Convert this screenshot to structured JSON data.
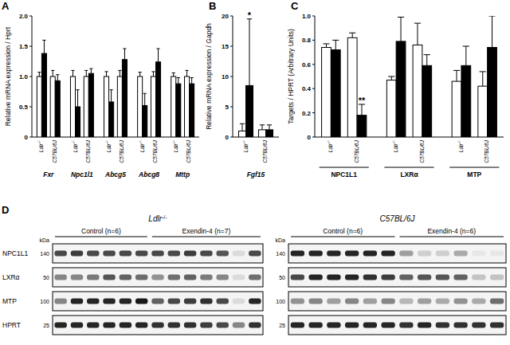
{
  "chart_data": [
    {
      "type": "bar",
      "title": "A",
      "y_label": "Relative mRNA expression / Hprt",
      "groups": [
        "Fxr",
        "Npc1l1",
        "Abcg5",
        "Abcg8",
        "Mttp"
      ],
      "categories": [
        "Ldlr-/-",
        "C57BL/6J",
        "Ldlr-/-",
        "C57BL/6J",
        "Ldlr-/-",
        "C57BL/6J",
        "Ldlr-/-",
        "C57BL/6J",
        "Ldlr-/-",
        "C57BL/6J"
      ],
      "series": [
        {
          "color": "#ffffff",
          "values": [
            1.0,
            1.0,
            1.0,
            1.0,
            1.0,
            1.0,
            1.0,
            1.0,
            1.0,
            1.0
          ],
          "errors": [
            0.07,
            0.1,
            0.1,
            0.1,
            0.08,
            0.1,
            0.07,
            0.08,
            0.06,
            0.1
          ]
        },
        {
          "color": "#000000",
          "values": [
            1.38,
            0.93,
            0.5,
            1.05,
            0.58,
            1.28,
            0.52,
            1.24,
            0.88,
            0.88
          ],
          "errors": [
            0.22,
            0.1,
            0.28,
            0.08,
            0.2,
            0.18,
            0.2,
            0.22,
            0.1,
            0.1
          ]
        }
      ],
      "ylim": [
        0,
        2
      ],
      "yticks": [
        0,
        0.5,
        {
          "value": 1,
          "label": "1.0"
        },
        1.5,
        {
          "value": 2,
          "label": "2.0"
        }
      ]
    },
    {
      "type": "bar",
      "title": "B",
      "y_label": "Relative mRNA expression / Gapdh",
      "groups": [
        "Fgf15"
      ],
      "categories": [
        "Ldlr-/-",
        "C57BL/6J"
      ],
      "series": [
        {
          "color": "#ffffff",
          "values": [
            1.0,
            1.2
          ],
          "errors": [
            1.2,
            0.8
          ]
        },
        {
          "color": "#000000",
          "values": [
            8.5,
            1.2
          ],
          "errors": [
            11,
            0.8
          ],
          "significance": [
            "*",
            null
          ]
        }
      ],
      "ylim": [
        0,
        20
      ],
      "yticks": [
        0,
        5,
        10,
        15,
        20
      ]
    },
    {
      "type": "bar",
      "title": "C",
      "y_label": "Targets / HPRT (Arbitrary Units)",
      "groups": [
        "NPC1L1",
        "LXRα",
        "MTP"
      ],
      "categories": [
        "Ldlr-/-",
        "C57BL/6J",
        "Ldlr-/-",
        "C57BL/6J",
        "Ldlr-/-",
        "C57BL/6J"
      ],
      "series": [
        {
          "color": "#ffffff",
          "values": [
            0.74,
            0.82,
            0.47,
            0.76,
            0.46,
            0.42
          ],
          "errors": [
            0.03,
            0.04,
            0.03,
            0.18,
            0.09,
            0.12
          ]
        },
        {
          "color": "#000000",
          "values": [
            0.72,
            0.18,
            0.79,
            0.59,
            0.59,
            0.74
          ],
          "errors": [
            0.08,
            0.09,
            0.2,
            0.09,
            0.16,
            0.26
          ],
          "significance": [
            null,
            "**",
            null,
            null,
            null,
            null
          ]
        }
      ],
      "ylim": [
        0,
        1
      ],
      "yticks": [
        0,
        0.2,
        0.4,
        0.6,
        0.8,
        {
          "value": 1,
          "label": "1.0"
        }
      ]
    }
  ],
  "blot_panel": {
    "label": "D",
    "unit": "kDa",
    "blots": [
      {
        "title": "Ldlr-/-",
        "groups": [
          {
            "label": "Control (n=6)",
            "lanes": 6
          },
          {
            "label": "Exendin-4 (n=7)",
            "lanes": 7
          }
        ],
        "rows": [
          {
            "protein": "NPC1L1",
            "marker": 140,
            "intensity": [
              0.7,
              0.75,
              0.7,
              0.7,
              0.7,
              0.7,
              0.7,
              0.7,
              0.75,
              0.7,
              0.65,
              0.1,
              0.7
            ]
          },
          {
            "protein": "LXRα",
            "marker": 50,
            "intensity": [
              0.45,
              0.45,
              0.5,
              0.65,
              0.6,
              0.55,
              0.4,
              0.55,
              0.6,
              0.5,
              0.45,
              0.1,
              0.55
            ]
          },
          {
            "protein": "MTP",
            "marker": 100,
            "intensity": [
              0.45,
              0.85,
              0.85,
              0.85,
              0.85,
              0.9,
              0.6,
              0.7,
              0.75,
              0.8,
              0.7,
              0.1,
              0.85
            ]
          },
          {
            "protein": "HPRT",
            "marker": 25,
            "intensity": [
              0.85,
              0.85,
              0.85,
              0.85,
              0.85,
              0.85,
              0.8,
              0.8,
              0.8,
              0.75,
              0.7,
              0.45,
              0.8
            ]
          }
        ]
      },
      {
        "title": "C57BL/6J",
        "groups": [
          {
            "label": "Control (n=6)",
            "lanes": 6
          },
          {
            "label": "Exendin-4 (n=6)",
            "lanes": 6
          }
        ],
        "rows": [
          {
            "marker": 140,
            "intensity": [
              0.85,
              0.85,
              0.85,
              0.85,
              0.85,
              0.85,
              0.35,
              0.15,
              0.15,
              0.3,
              0.05,
              0.05
            ]
          },
          {
            "marker": 50,
            "intensity": [
              0.7,
              0.85,
              0.85,
              0.85,
              0.8,
              0.75,
              0.6,
              0.65,
              0.65,
              0.6,
              0.2,
              0.2
            ]
          },
          {
            "marker": 100,
            "intensity": [
              0.4,
              0.45,
              0.35,
              0.45,
              0.35,
              0.45,
              0.25,
              0.35,
              0.3,
              0.4,
              0.3,
              0.55
            ]
          },
          {
            "marker": 25,
            "intensity": [
              0.85,
              0.85,
              0.85,
              0.85,
              0.85,
              0.85,
              0.8,
              0.85,
              0.8,
              0.8,
              0.8,
              0.8
            ]
          }
        ]
      }
    ]
  }
}
